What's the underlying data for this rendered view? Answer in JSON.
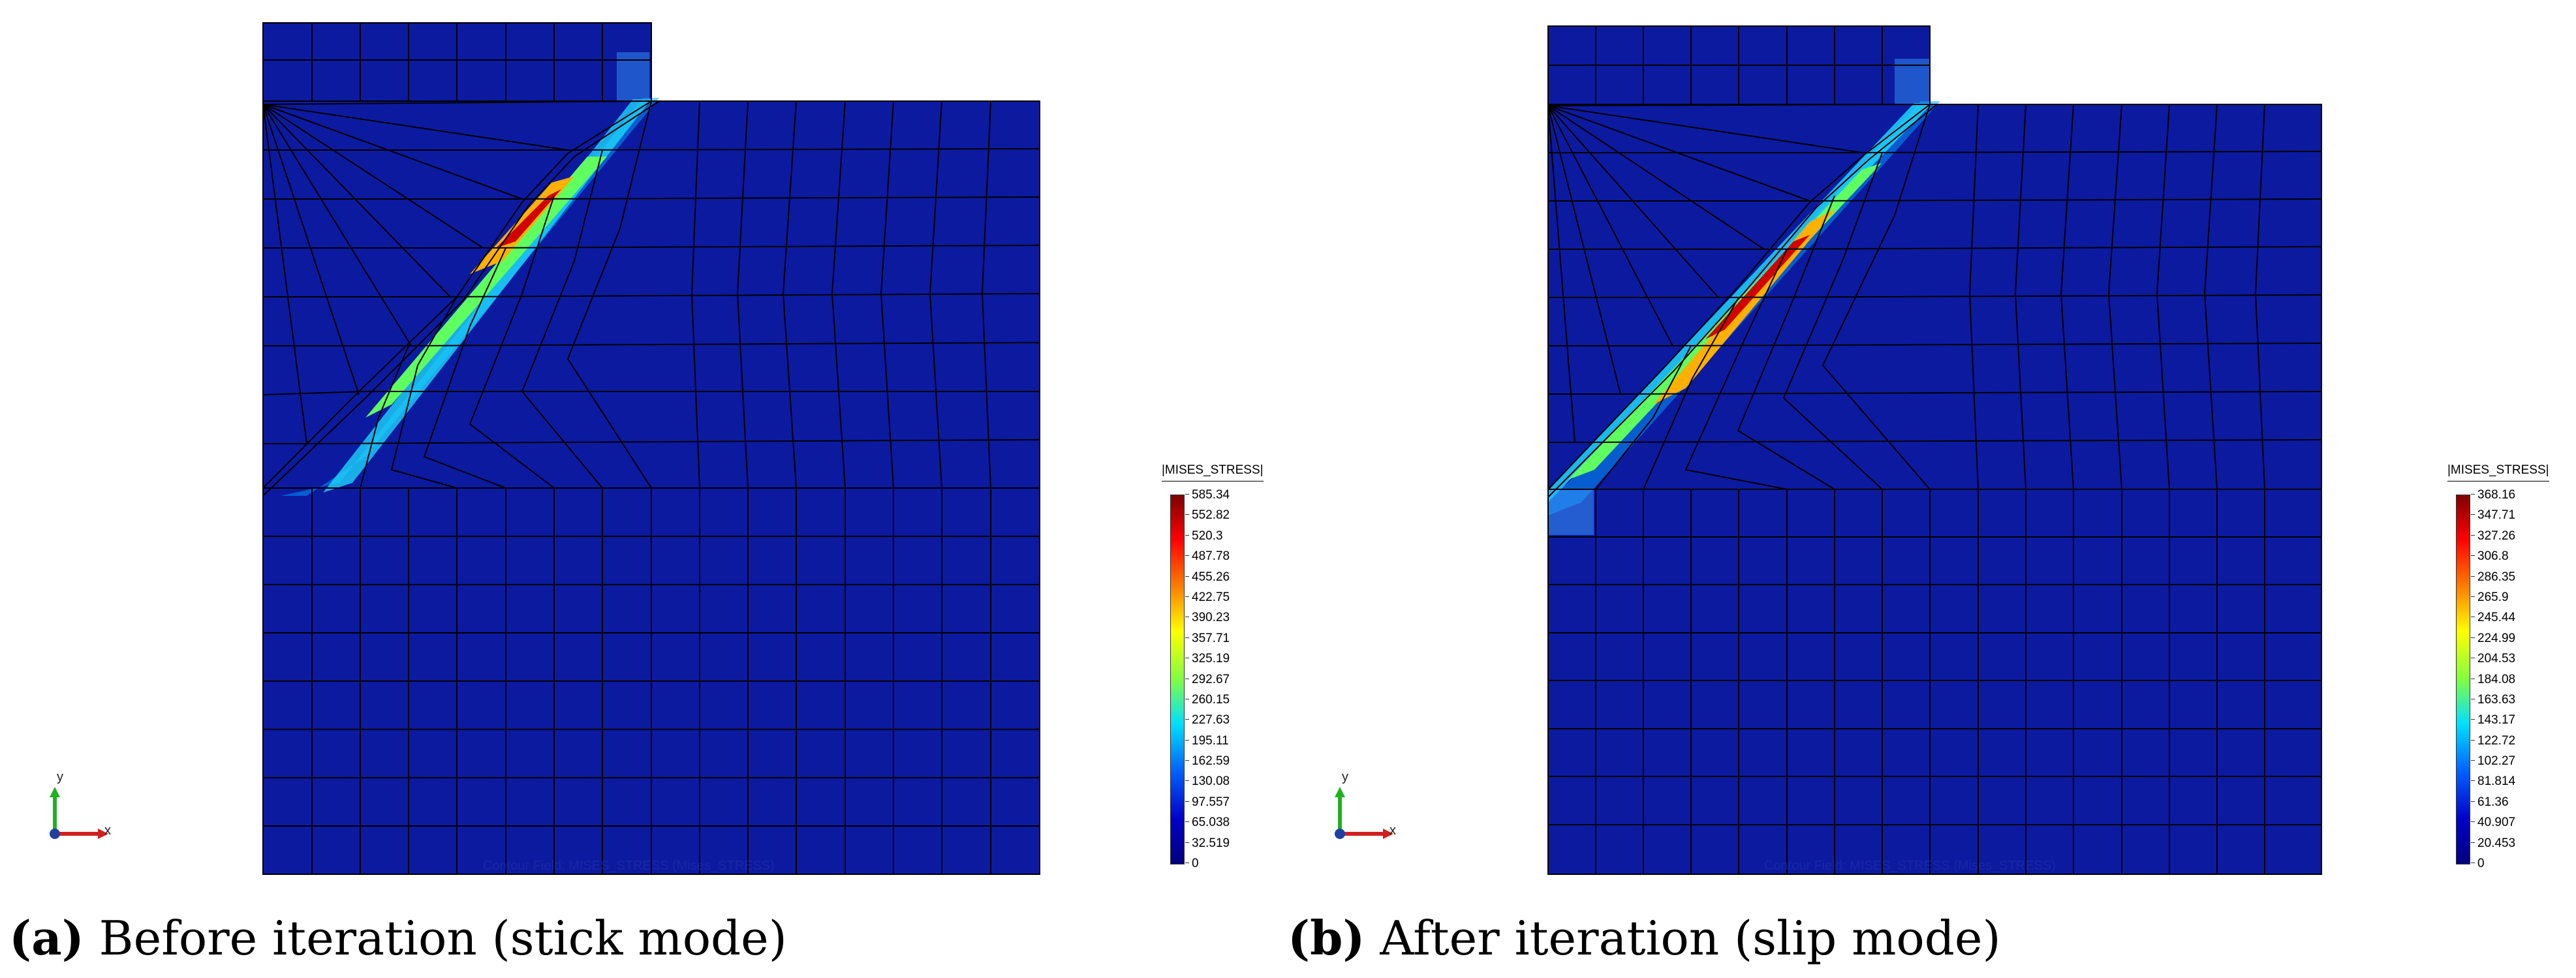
{
  "figure": {
    "panels": [
      {
        "id": "a",
        "caption_tag": "(a)",
        "caption_text": " Before iteration (stick mode)",
        "legend_title": "|MISES_STRESS|",
        "legend_ticks": [
          "585.34",
          "552.82",
          "520.3",
          "487.78",
          "455.26",
          "422.75",
          "390.23",
          "357.71",
          "325.19",
          "292.67",
          "260.15",
          "227.63",
          "195.11",
          "162.59",
          "130.08",
          "97.557",
          "65.038",
          "32.519",
          "0"
        ],
        "footer_text": "Contour Field: MISES_STRESS (Mises_STRESS)",
        "axis_x": "x",
        "axis_y": "y"
      },
      {
        "id": "b",
        "caption_tag": "(b)",
        "caption_text": " After iteration (slip mode)",
        "legend_title": "|MISES_STRESS|",
        "legend_ticks": [
          "368.16",
          "347.71",
          "327.26",
          "306.8",
          "286.35",
          "265.9",
          "245.44",
          "224.99",
          "204.53",
          "184.08",
          "163.63",
          "143.17",
          "122.72",
          "102.27",
          "81.814",
          "61.36",
          "40.907",
          "20.453",
          "0"
        ],
        "footer_text": "Contour Field: MISES_STRESS (Mises_STRESS)",
        "axis_x": "x",
        "axis_y": "y"
      }
    ]
  }
}
